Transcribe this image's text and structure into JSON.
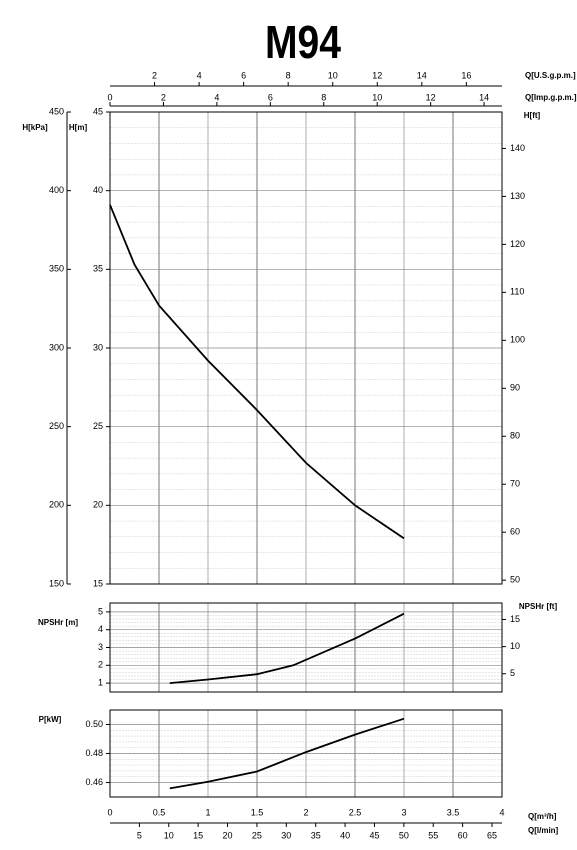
{
  "chart_data": [
    {
      "type": "line",
      "title": "M94",
      "x": [
        0,
        0.25,
        0.5,
        1,
        1.5,
        2,
        2.5,
        3
      ],
      "values": [
        39.1,
        35.3,
        32.7,
        29.2,
        26.05,
        22.7,
        20.0,
        17.9
      ],
      "color": "#000000",
      "xlim": [
        0,
        4
      ],
      "xticks": [
        0,
        0.5,
        1,
        1.5,
        2,
        2.5,
        3,
        3.5,
        4
      ],
      "ylim": [
        15,
        45
      ],
      "yticks": [
        15,
        20,
        25,
        30,
        35,
        40,
        45
      ],
      "ylabel": "H[m]",
      "y2lim": [
        49.2,
        147.6
      ],
      "y2ticks": [
        50,
        60,
        70,
        80,
        90,
        100,
        110,
        120,
        130,
        140
      ],
      "y2label": "H[ft]",
      "y3lim": [
        150,
        450
      ],
      "y3ticks": [
        150,
        200,
        250,
        300,
        350,
        400,
        450
      ],
      "y3label": "H[kPa]",
      "top_axes": [
        {
          "label": "Q[U.S.g.p.m.]",
          "lim": [
            0,
            17.6
          ],
          "ticks": [
            2,
            4,
            6,
            8,
            10,
            12,
            14,
            16
          ]
        },
        {
          "label": "Q[Imp.g.p.m.]",
          "lim": [
            0,
            14.67
          ],
          "ticks": [
            0,
            2,
            4,
            6,
            8,
            10,
            12,
            14
          ]
        }
      ],
      "grid": true
    },
    {
      "type": "line",
      "x": [
        0.61,
        1,
        1.5,
        1.87,
        2.5,
        3
      ],
      "values": [
        1.0,
        1.2,
        1.5,
        2.0,
        3.5,
        4.9
      ],
      "color": "#000000",
      "xlim": [
        0,
        4
      ],
      "xticks": [
        0,
        0.5,
        1,
        1.5,
        2,
        2.5,
        3,
        3.5,
        4
      ],
      "ylim": [
        0.5,
        5.5
      ],
      "yticks": [
        1,
        2,
        3,
        4,
        5
      ],
      "ylabel": "NPSHr [m]",
      "y2lim": [
        1.64,
        18.04
      ],
      "y2ticks": [
        5,
        10,
        15
      ],
      "y2label": "NPSHr [ft]",
      "grid": true
    },
    {
      "type": "line",
      "x": [
        0.61,
        1,
        1.5,
        2,
        2.5,
        3
      ],
      "values": [
        0.4559,
        0.4605,
        0.4676,
        0.481,
        0.493,
        0.504
      ],
      "color": "#000000",
      "xlim": [
        0,
        4
      ],
      "xticks": [
        0,
        0.5,
        1,
        1.5,
        2,
        2.5,
        3,
        3.5,
        4
      ],
      "xlabel": "Q[m³/h]",
      "ylim": [
        0.45,
        0.51
      ],
      "yticks": [
        0.46,
        0.48,
        {
          "value": 0.5,
          "label": "0.50"
        }
      ],
      "ylabel": "P[kW]",
      "bottom_axis": {
        "label": "Q[l/min]",
        "lim": [
          0,
          66.7
        ],
        "ticks": [
          5,
          10,
          15,
          20,
          25,
          30,
          35,
          40,
          45,
          50,
          55,
          60,
          65
        ]
      },
      "grid": true
    }
  ]
}
